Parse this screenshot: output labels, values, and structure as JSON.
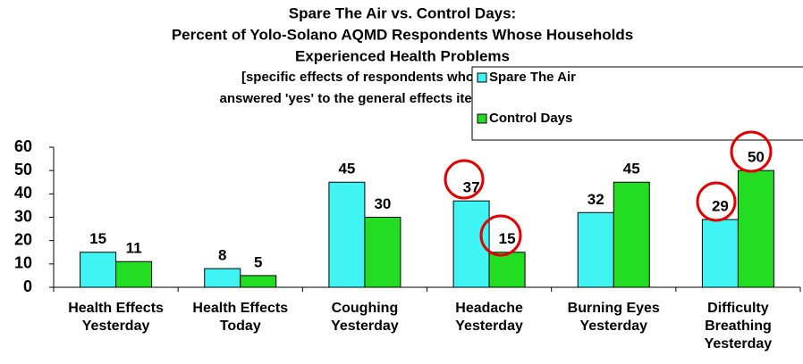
{
  "chart_data": {
    "type": "bar",
    "title": [
      "Spare The Air vs. Control Days:",
      "Percent of Yolo-Solano AQMD Respondents Whose Households",
      "Experienced Health Problems"
    ],
    "subtitle": [
      "[specific effects of respondents who",
      "answered 'yes' to the general effects items]"
    ],
    "categories": [
      "Health Effects Yesterday",
      "Health Effects Today",
      "Coughing Yesterday",
      "Headache Yesterday",
      "Burning Eyes Yesterday",
      "Difficulty Breathing Yesterday"
    ],
    "series": [
      {
        "name": "Spare The Air",
        "color": "#40f4f4",
        "values": [
          15,
          8,
          45,
          37,
          32,
          29
        ]
      },
      {
        "name": "Control Days",
        "color": "#22dd22",
        "values": [
          11,
          5,
          30,
          15,
          45,
          50
        ]
      }
    ],
    "ylim": [
      0,
      60
    ],
    "yticks": [
      0,
      10,
      20,
      30,
      40,
      50,
      60
    ],
    "legend": "top-right"
  }
}
